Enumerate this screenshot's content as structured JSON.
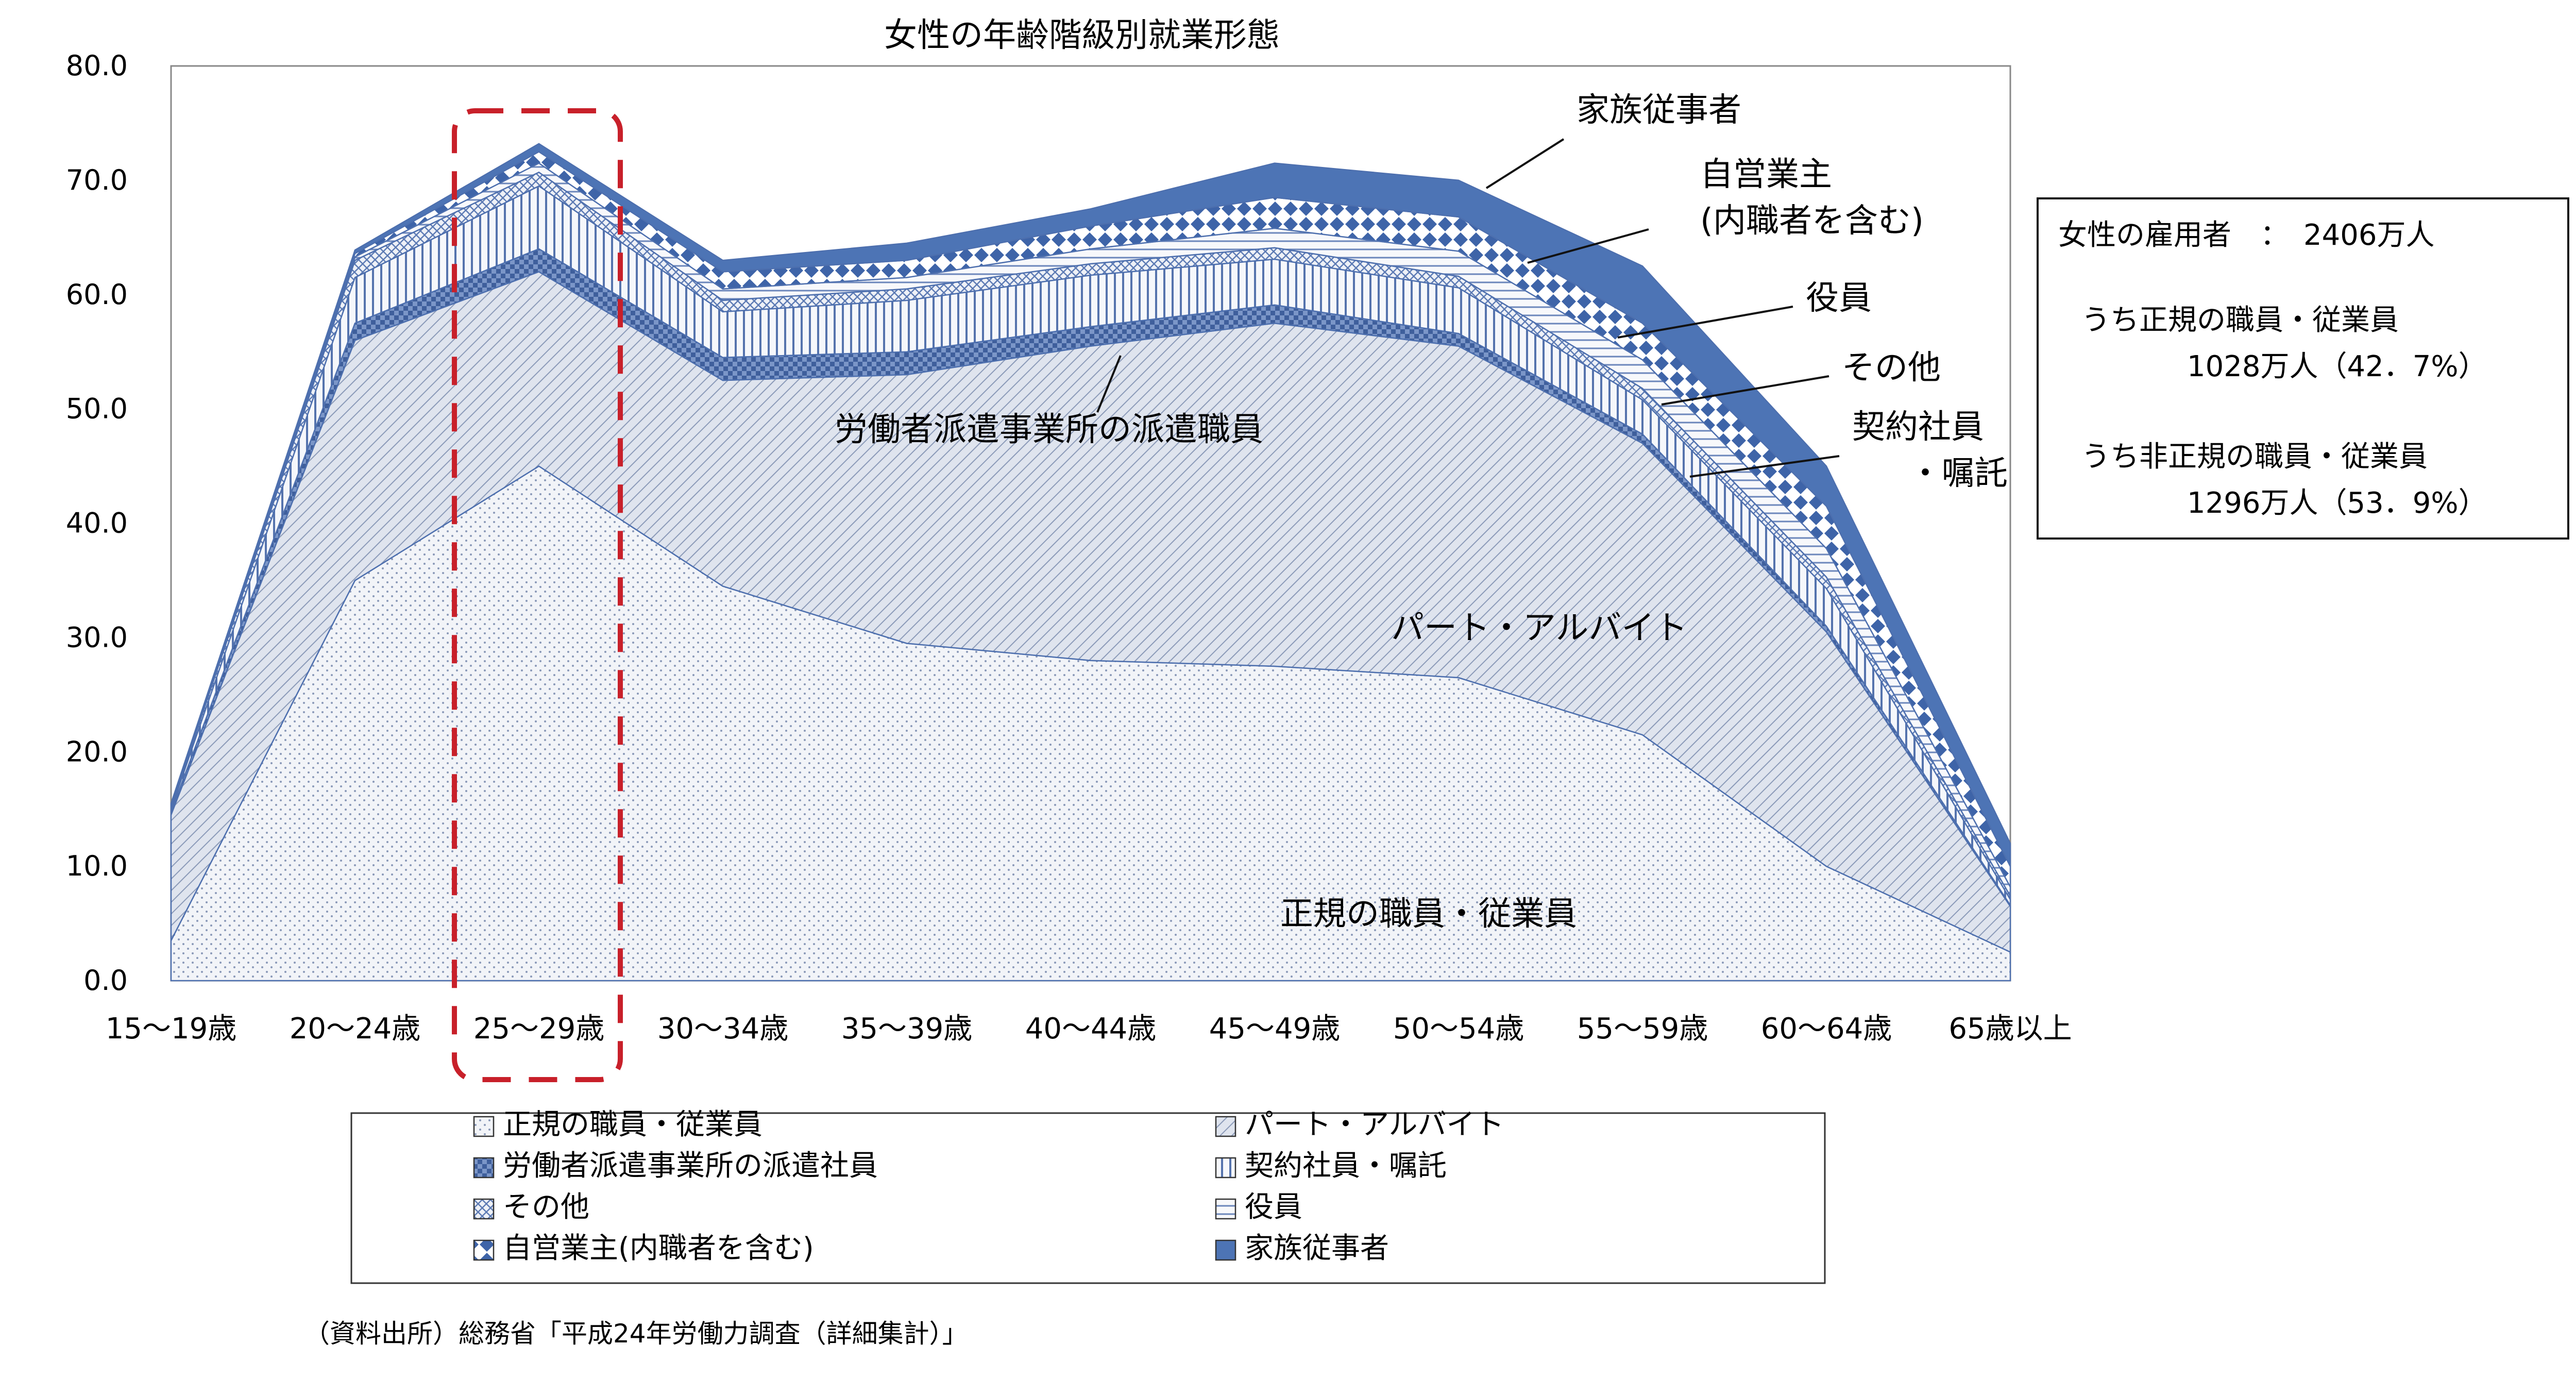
{
  "chart_data": {
    "type": "area",
    "stacked": true,
    "title": "女性の年齢階級別就業形態",
    "ylim": [
      0,
      80
    ],
    "yticks": [
      "0.0",
      "10.0",
      "20.0",
      "30.0",
      "40.0",
      "50.0",
      "60.0",
      "70.0",
      "80.0"
    ],
    "categories": [
      "15～19歳",
      "20～24歳",
      "25～29歳",
      "30～34歳",
      "35～39歳",
      "40～44歳",
      "45～49歳",
      "50～54歳",
      "55～59歳",
      "60～64歳",
      "65歳以上"
    ],
    "highlight_category": "25～29歳",
    "series": [
      {
        "name": "正規の職員・従業員",
        "values": [
          3.5,
          35.0,
          45.0,
          34.5,
          29.5,
          28.0,
          27.5,
          26.5,
          21.5,
          10.0,
          2.5
        ],
        "color": "#f2f4f8",
        "pattern": "dots"
      },
      {
        "name": "パート・アルバイト",
        "values": [
          11.0,
          21.0,
          17.0,
          18.0,
          23.5,
          27.5,
          30.0,
          29.0,
          25.5,
          20.5,
          4.0
        ],
        "color": "#cdd5e3",
        "pattern": "diagonal"
      },
      {
        "name": "労働者派遣事業所の派遣社員",
        "values": [
          0.3,
          1.5,
          2.0,
          2.0,
          2.0,
          1.7,
          1.6,
          1.1,
          0.8,
          0.5,
          0.1
        ],
        "color": "#5b7bb3",
        "pattern": "checker"
      },
      {
        "name": "契約社員・嘱託",
        "values": [
          0.2,
          4.0,
          5.5,
          4.0,
          4.5,
          4.5,
          4.0,
          4.0,
          3.0,
          3.3,
          0.5
        ],
        "color": "#7a95c5",
        "pattern": "vertical"
      },
      {
        "name": "その他",
        "values": [
          0.2,
          1.5,
          1.2,
          1.0,
          1.0,
          1.0,
          1.0,
          1.0,
          1.0,
          1.0,
          0.3
        ],
        "color": "#aab9d8",
        "pattern": "crosshatch"
      },
      {
        "name": "役員",
        "values": [
          0.1,
          0.3,
          0.8,
          1.0,
          1.0,
          1.3,
          1.7,
          2.2,
          2.5,
          2.5,
          0.8
        ],
        "color": "#dde3ef",
        "pattern": "horizontal"
      },
      {
        "name": "自営業主(内職者を含む)",
        "values": [
          0.1,
          0.3,
          1.0,
          1.5,
          1.5,
          2.0,
          2.7,
          3.0,
          3.2,
          3.7,
          1.8
        ],
        "color": "#4a6fae",
        "pattern": "diamond"
      },
      {
        "name": "家族従事者",
        "values": [
          0.1,
          0.3,
          0.7,
          1.0,
          1.5,
          1.5,
          3.0,
          3.2,
          5.0,
          3.5,
          2.0
        ],
        "color": "#4d74b5",
        "pattern": "solid"
      }
    ]
  },
  "labels": {
    "seiki": "正規の職員・従業員",
    "part": "パート・アルバイト",
    "haken": "労働者派遣事業所の派遣職員",
    "kazoku": "家族従事者",
    "jiei_1": "自営業主",
    "jiei_2": "(内職者を含む)",
    "yakuin": "役員",
    "sonota": "その他",
    "keiyaku_1": "契約社員",
    "keiyaku_2": "・嘱託"
  },
  "summary": {
    "line1": "女性の雇用者　：　2406万人",
    "line2": "うち正規の職員・従業員",
    "line3": "1028万人（42．7%）",
    "line4": "うち非正規の職員・従業員",
    "line5": "1296万人（53．9%）"
  },
  "source": "（資料出所）総務省「平成24年労働力調査（詳細集計）」"
}
